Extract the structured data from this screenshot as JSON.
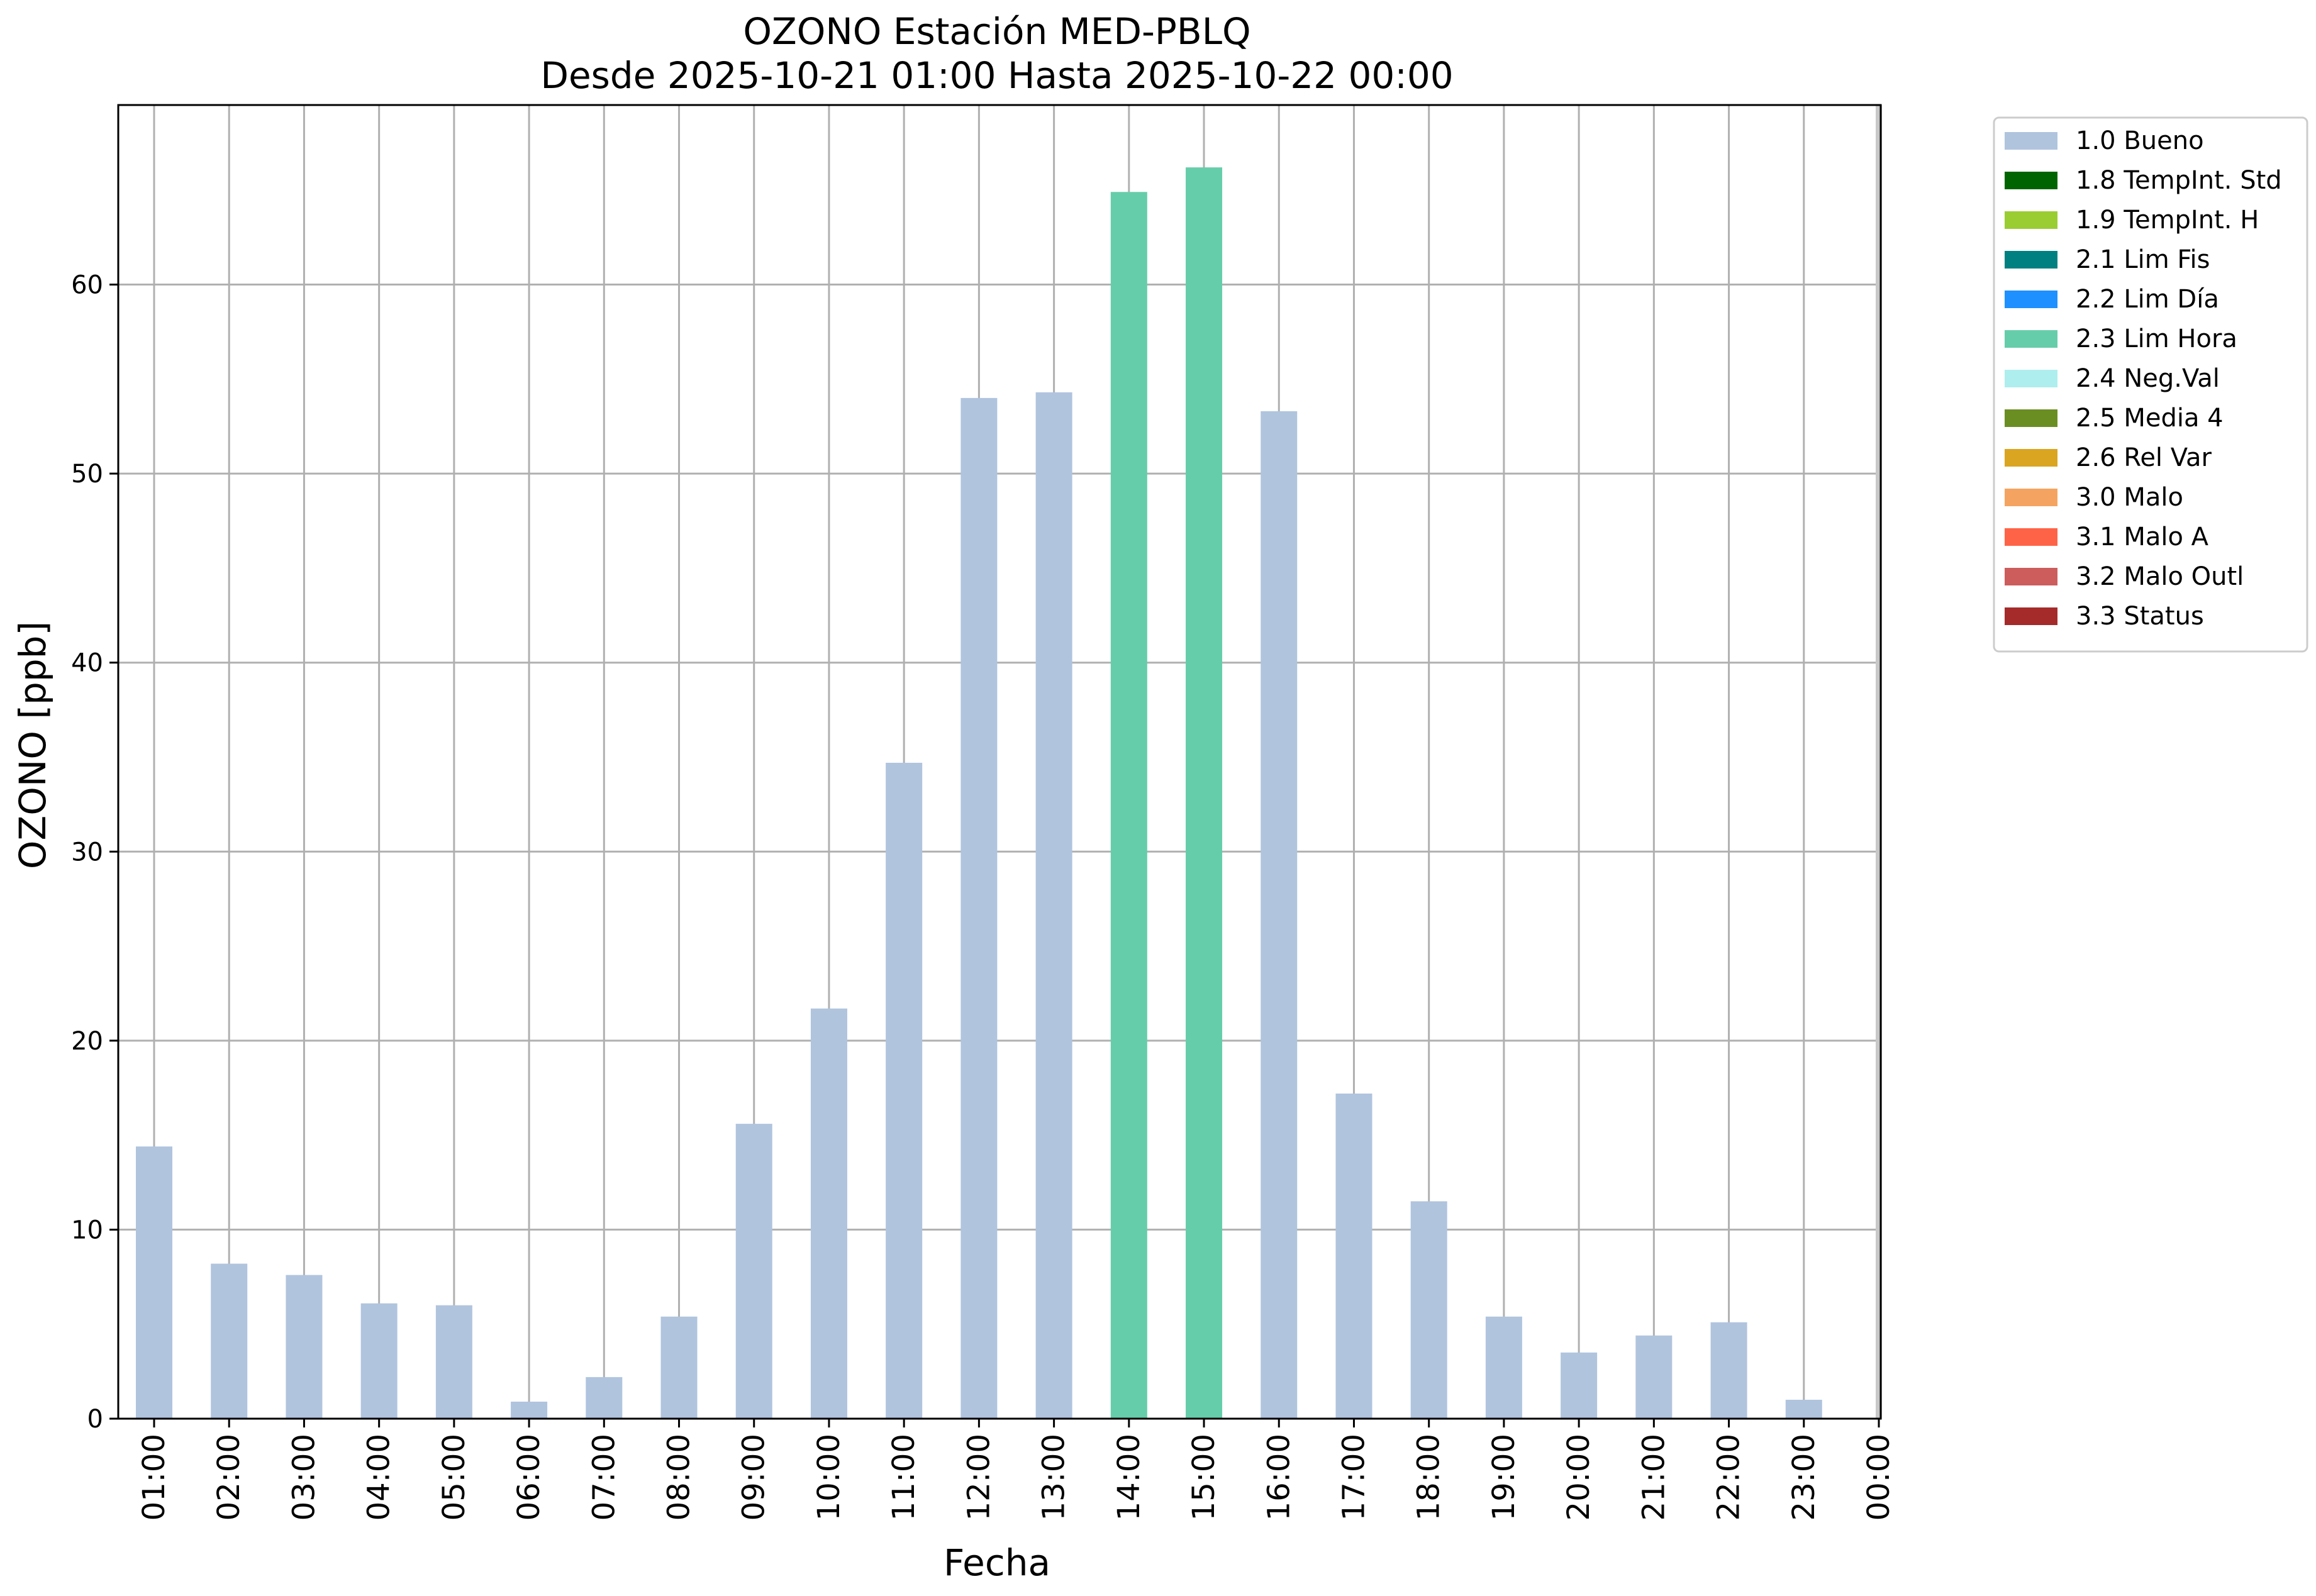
{
  "chart_data": {
    "type": "bar",
    "title": "OZONO Estación MED-PBLQ",
    "subtitle": "Desde 2025-10-21 01:00 Hasta 2025-10-22 00:00",
    "xlabel": "Fecha",
    "ylabel": "OZONO [ppb]",
    "ylim": [
      0,
      69.5
    ],
    "yticks": [
      0,
      10,
      20,
      30,
      40,
      50,
      60
    ],
    "grid": true,
    "legend_position": "outside-right-top",
    "categories": [
      "01:00",
      "02:00",
      "03:00",
      "04:00",
      "05:00",
      "06:00",
      "07:00",
      "08:00",
      "09:00",
      "10:00",
      "11:00",
      "12:00",
      "13:00",
      "14:00",
      "15:00",
      "16:00",
      "17:00",
      "18:00",
      "19:00",
      "20:00",
      "21:00",
      "22:00",
      "23:00",
      "00:00"
    ],
    "values": [
      14.4,
      8.2,
      7.6,
      6.1,
      6.0,
      0.9,
      2.2,
      5.4,
      15.6,
      21.7,
      34.7,
      54.0,
      54.3,
      64.9,
      66.2,
      53.3,
      17.2,
      11.5,
      5.4,
      3.5,
      4.4,
      5.1,
      1.0,
      null
    ],
    "flags": [
      "1.0 Bueno",
      "1.0 Bueno",
      "1.0 Bueno",
      "1.0 Bueno",
      "1.0 Bueno",
      "1.0 Bueno",
      "1.0 Bueno",
      "1.0 Bueno",
      "1.0 Bueno",
      "1.0 Bueno",
      "1.0 Bueno",
      "1.0 Bueno",
      "1.0 Bueno",
      "2.3 Lim Hora",
      "2.3 Lim Hora",
      "1.0 Bueno",
      "1.0 Bueno",
      "1.0 Bueno",
      "1.0 Bueno",
      "1.0 Bueno",
      "1.0 Bueno",
      "1.0 Bueno",
      "1.0 Bueno",
      null
    ],
    "legend": [
      {
        "label": "1.0 Bueno",
        "color": "#b0c4de"
      },
      {
        "label": "1.8 TempInt. Std",
        "color": "#006400"
      },
      {
        "label": "1.9 TempInt. H",
        "color": "#9acd32"
      },
      {
        "label": "2.1 Lim Fis",
        "color": "#008080"
      },
      {
        "label": "2.2 Lim Día",
        "color": "#1e90ff"
      },
      {
        "label": "2.3 Lim Hora",
        "color": "#66cdaa"
      },
      {
        "label": "2.4 Neg.Val",
        "color": "#afeeee"
      },
      {
        "label": "2.5 Media 4",
        "color": "#6b8e23"
      },
      {
        "label": "2.6 Rel Var",
        "color": "#daa520"
      },
      {
        "label": "3.0 Malo",
        "color": "#f4a460"
      },
      {
        "label": "3.1 Malo A",
        "color": "#ff6347"
      },
      {
        "label": "3.2 Malo Outl",
        "color": "#cd5c5c"
      },
      {
        "label": "3.3 Status",
        "color": "#a52a2a"
      }
    ]
  }
}
